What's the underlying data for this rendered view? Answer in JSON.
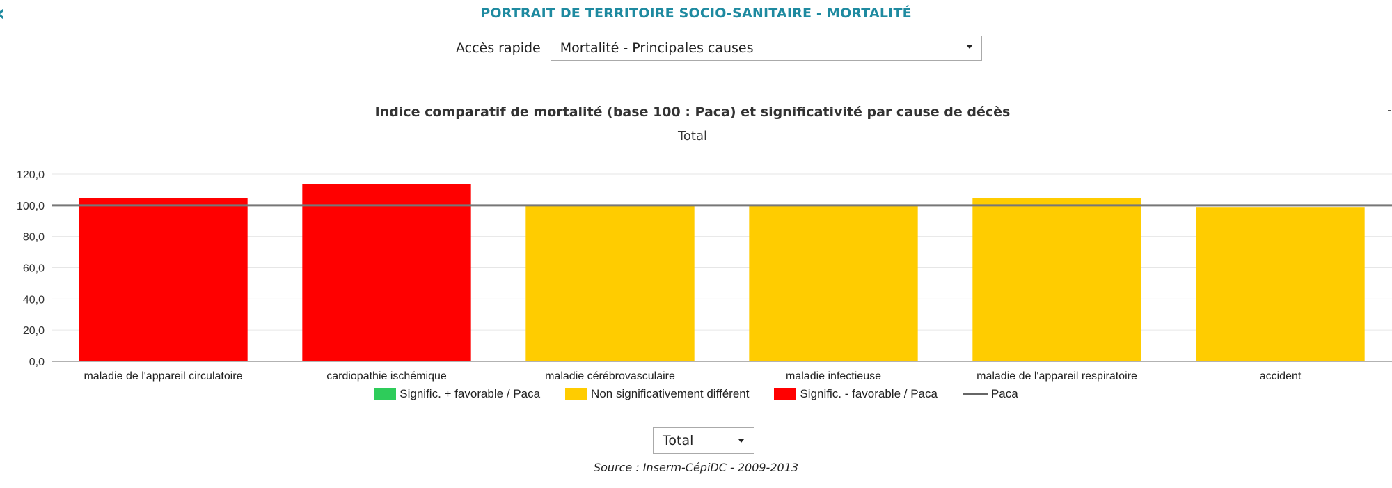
{
  "page": {
    "title": "PORTRAIT DE TERRITOIRE SOCIO-SANITAIRE - MORTALITÉ",
    "quick_access_label": "Accès rapide",
    "quick_access_value": "Mortalité - Principales causes",
    "sex_select_value": "Total",
    "source": "Source : Inserm-CépiDC - 2009-2013"
  },
  "chart_data": {
    "type": "bar",
    "title": "Indice comparatif de mortalité (base 100 : Paca) et significativité par cause de décès",
    "subtitle": "Total",
    "categories": [
      "maladie de l'appareil circulatoire",
      "cardiopathie ischémique",
      "maladie cérébrovasculaire",
      "maladie infectieuse",
      "maladie de l'appareil respiratoire",
      "accident"
    ],
    "values": [
      104.5,
      113.5,
      100.0,
      100.0,
      104.5,
      98.5
    ],
    "significance": [
      "unfavorable",
      "unfavorable",
      "non-significant",
      "non-significant",
      "non-significant",
      "non-significant"
    ],
    "reference_line": {
      "name": "Paca",
      "value": 100
    },
    "ylim": [
      0,
      120
    ],
    "yticks": [
      0,
      20,
      40,
      60,
      80,
      100,
      120
    ],
    "ytick_labels": [
      "0,0",
      "20,0",
      "40,0",
      "60,0",
      "80,0",
      "100,0",
      "120,0"
    ],
    "grid": true,
    "legend_position": "bottom",
    "legend": [
      {
        "label": "Signific. + favorable / Paca",
        "key": "favorable",
        "color": "#2ecc5a"
      },
      {
        "label": "Non significativement différent",
        "key": "non-significant",
        "color": "#ffcc00"
      },
      {
        "label": "Signific. - favorable / Paca",
        "key": "unfavorable",
        "color": "#ff0000"
      },
      {
        "label": "Paca",
        "key": "reference",
        "color": "#666666"
      }
    ]
  }
}
